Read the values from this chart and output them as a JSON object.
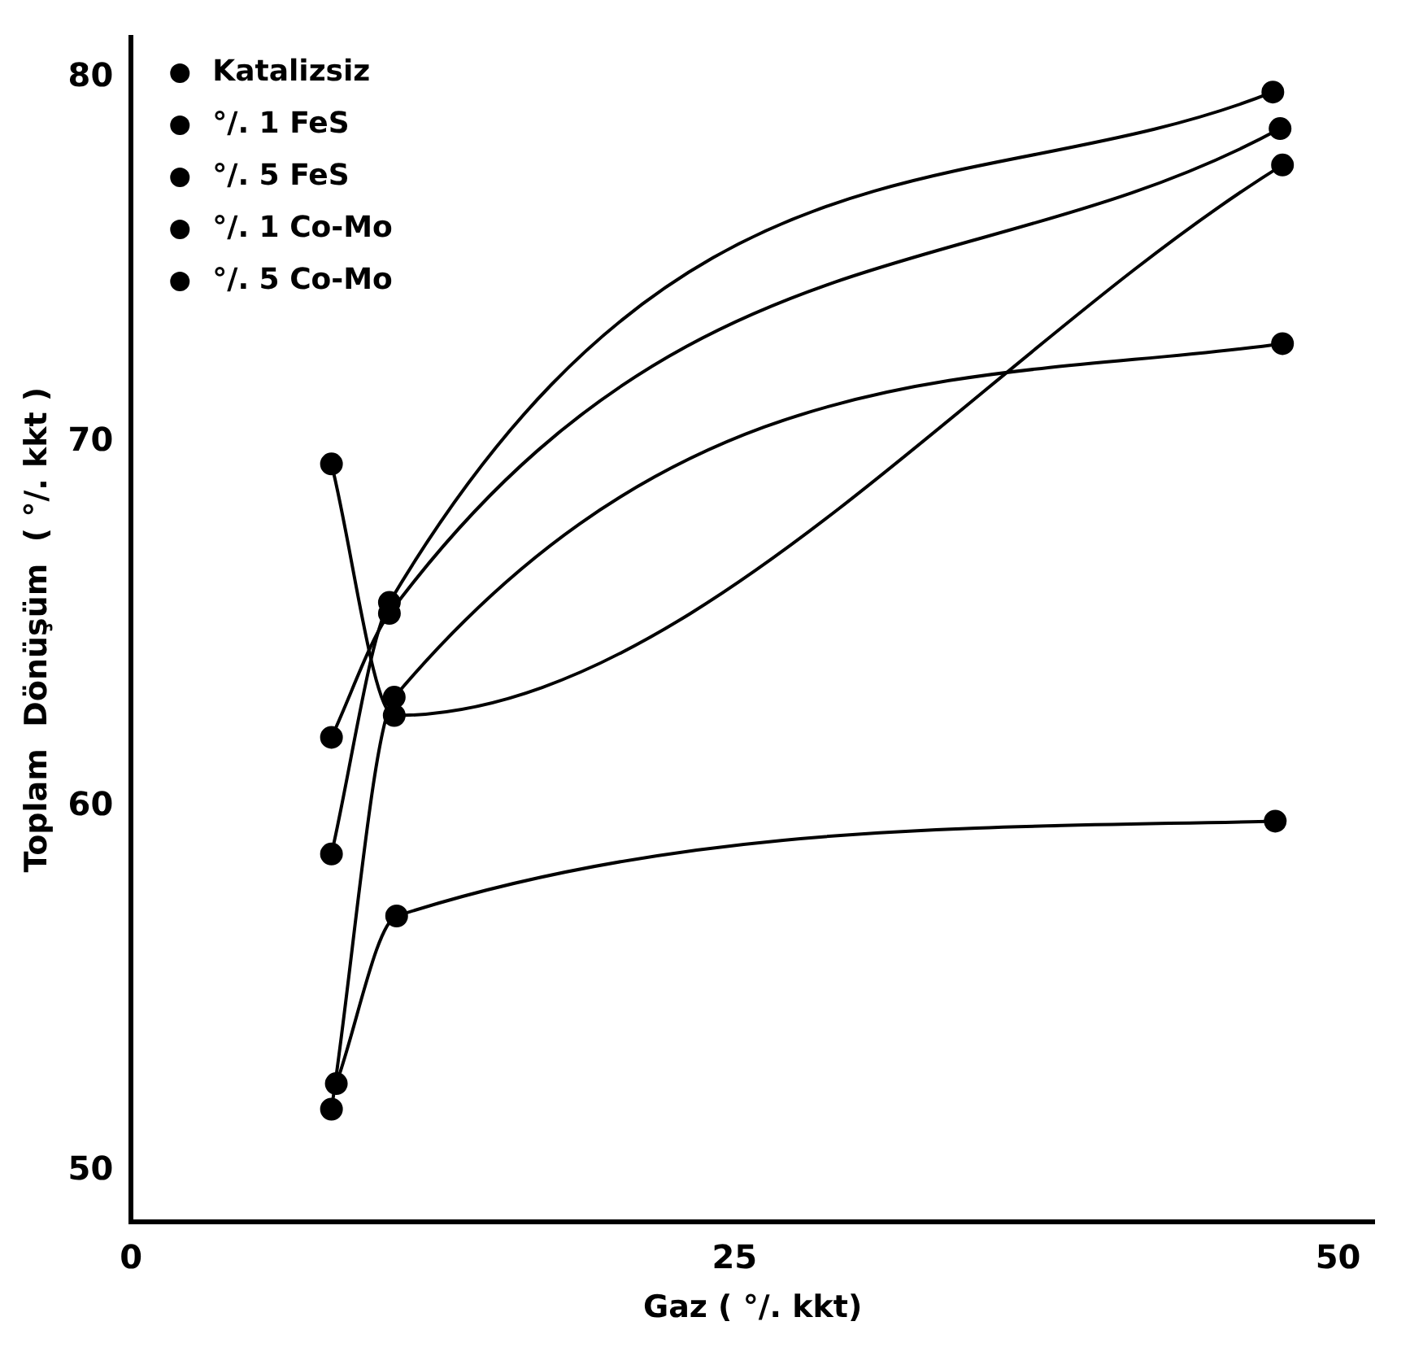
{
  "chart_data": {
    "type": "line",
    "xlabel": "Gaz ( °/. kkt)",
    "ylabel": "Toplam  Dönüşüm  ( °/. kkt )",
    "xlim": [
      0,
      51.5
    ],
    "ylim": [
      48.6,
      81.1
    ],
    "xticks": [
      0,
      25,
      50
    ],
    "yticks": [
      50,
      60,
      70,
      80
    ],
    "grid": false,
    "legend": "top left",
    "marker": "circle",
    "line_style": "solid",
    "series": [
      {
        "name": "Katalizsiz",
        "color": "#000000",
        "x": [
          8.3,
          10.7,
          47.3
        ],
        "values": [
          58.7,
          65.6,
          79.6
        ]
      },
      {
        "name": "°/. 1 FeS",
        "color": "#000000",
        "x": [
          8.3,
          10.7,
          47.6
        ],
        "values": [
          61.9,
          65.3,
          78.6
        ]
      },
      {
        "name": "°/. 5 FeS",
        "color": "#000000",
        "x": [
          8.3,
          10.9,
          47.7
        ],
        "values": [
          69.4,
          62.5,
          77.6
        ]
      },
      {
        "name": "°/. 1 Co-Mo",
        "color": "#000000",
        "x": [
          8.3,
          10.9,
          47.7
        ],
        "values": [
          51.7,
          63.0,
          72.7
        ]
      },
      {
        "name": "°/. 5 Co-Mo",
        "color": "#000000",
        "x": [
          8.5,
          11.0,
          47.4
        ],
        "values": [
          52.4,
          57.0,
          59.6
        ]
      }
    ]
  }
}
